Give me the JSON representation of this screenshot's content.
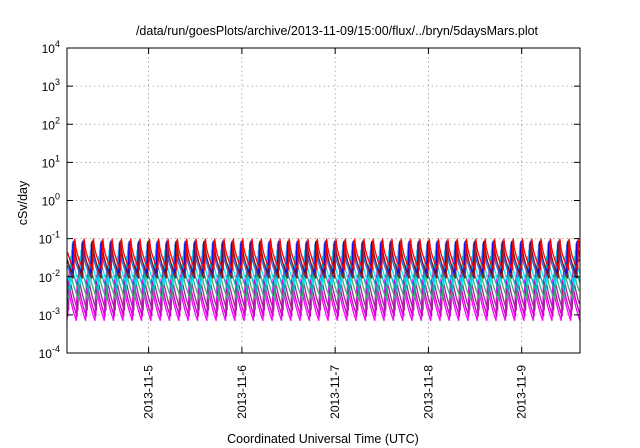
{
  "chart_data": {
    "type": "line",
    "title": "/data/run/goesPlots/archive/2013-11-09/15:00/flux/../bryn/5daysMars.plot",
    "xlabel": "Coordinated Universal Time (UTC)",
    "ylabel": "cSv/day",
    "y_scale": "log",
    "ylim": [
      0.0001,
      10000
    ],
    "y_ticks": [
      {
        "value": 0.0001,
        "base": "10",
        "exp": "-4"
      },
      {
        "value": 0.001,
        "base": "10",
        "exp": "-3"
      },
      {
        "value": 0.01,
        "base": "10",
        "exp": "-2"
      },
      {
        "value": 0.1,
        "base": "10",
        "exp": "-1"
      },
      {
        "value": 1,
        "base": "10",
        "exp": "0"
      },
      {
        "value": 10,
        "base": "10",
        "exp": "1"
      },
      {
        "value": 100,
        "base": "10",
        "exp": "2"
      },
      {
        "value": 1000,
        "base": "10",
        "exp": "3"
      },
      {
        "value": 10000,
        "base": "10",
        "exp": "4"
      }
    ],
    "xlim": [
      "2013-11-04T03:00",
      "2013-11-09T15:00"
    ],
    "x_ticks": [
      "2013-11-5",
      "2013-11-6",
      "2013-11-7",
      "2013-11-8",
      "2013-11-9"
    ],
    "x_tick_values": [
      "2013-11-05T00:00",
      "2013-11-06T00:00",
      "2013-11-07T00:00",
      "2013-11-08T00:00",
      "2013-11-09T00:00"
    ],
    "grid": true,
    "cycle_hours": 2.4,
    "series": [
      {
        "color": "#ff00ff",
        "peak": 0.009,
        "trough": 0.0007,
        "phase": 0.0
      },
      {
        "color": "#cc00cc",
        "peak": 0.011,
        "trough": 0.0009,
        "phase": 0.2
      },
      {
        "color": "#9a2b8f",
        "peak": 0.016,
        "trough": 0.0013,
        "phase": 0.4
      },
      {
        "color": "#3cb371",
        "peak": 0.02,
        "trough": 0.0025,
        "phase": 0.6
      },
      {
        "color": "#00b3b3",
        "peak": 0.035,
        "trough": 0.004,
        "phase": 0.8
      },
      {
        "color": "#00e5ff",
        "peak": 0.05,
        "trough": 0.006,
        "phase": 1.0
      },
      {
        "color": "#2d6cdf",
        "peak": 0.075,
        "trough": 0.01,
        "phase": 1.2
      },
      {
        "color": "#0000ff",
        "peak": 0.085,
        "trough": 0.012,
        "phase": 1.4
      },
      {
        "color": "#8b1a1a",
        "peak": 0.09,
        "trough": 0.009,
        "phase": 1.6
      },
      {
        "color": "#ff0000",
        "peak": 0.1,
        "trough": 0.015,
        "phase": 1.8
      }
    ]
  }
}
